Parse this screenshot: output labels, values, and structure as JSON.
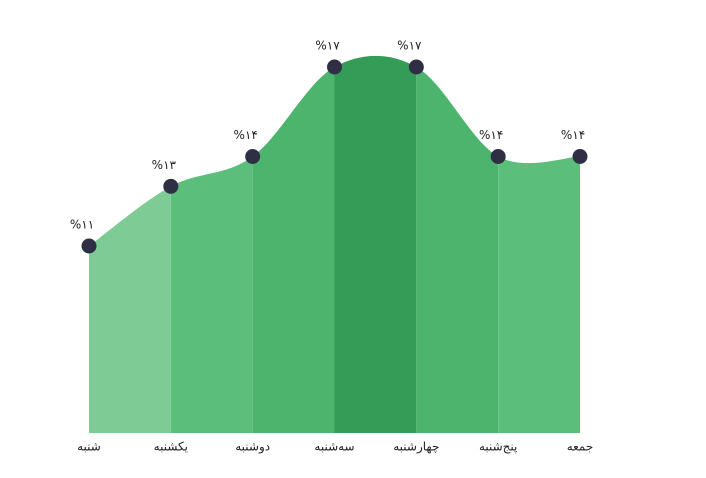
{
  "chart_data": {
    "type": "area",
    "categories": [
      "شنبه",
      "یکشنبه",
      "دوشنبه",
      "سه‌شنبه",
      "چهارشنبه",
      "پنج‌شنبه",
      "جمعه"
    ],
    "values": [
      11,
      13,
      14,
      17,
      17,
      14,
      14
    ],
    "value_labels": [
      "%۱۱",
      "%۱۳",
      "%۱۴",
      "%۱۷",
      "%۱۷",
      "%۱۴",
      "%۱۴"
    ],
    "colors": [
      "#7ecb96",
      "#5bbf7b",
      "#4db46d",
      "#359c58",
      "#4db46d",
      "#5bbf7b"
    ],
    "marker_color": "#2e2e45"
  }
}
